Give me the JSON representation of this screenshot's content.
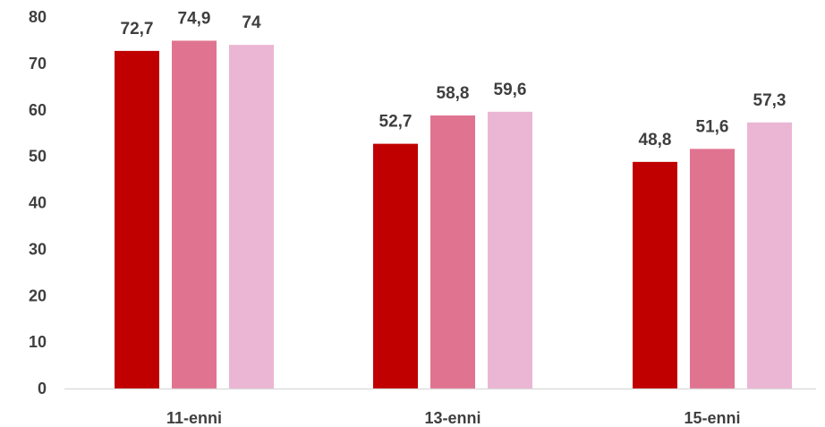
{
  "chart_data": {
    "type": "bar",
    "categories": [
      "11-enni",
      "13-enni",
      "15-enni"
    ],
    "series": [
      {
        "values": [
          72.7,
          52.7,
          48.8
        ],
        "labels": [
          "72,7",
          "52,7",
          "48,8"
        ],
        "color": "#c00000"
      },
      {
        "values": [
          74.9,
          58.8,
          51.6
        ],
        "labels": [
          "74,9",
          "58,8",
          "51,6"
        ],
        "color": "#e07490"
      },
      {
        "values": [
          74,
          59.6,
          57.3
        ],
        "labels": [
          "74",
          "59,6",
          "57,3"
        ],
        "color": "#ebb6d4"
      }
    ],
    "yticks": [
      "0",
      "10",
      "20",
      "30",
      "40",
      "50",
      "60",
      "70",
      "80"
    ],
    "ylim": [
      0,
      80
    ],
    "grid": false,
    "legend": "none"
  }
}
